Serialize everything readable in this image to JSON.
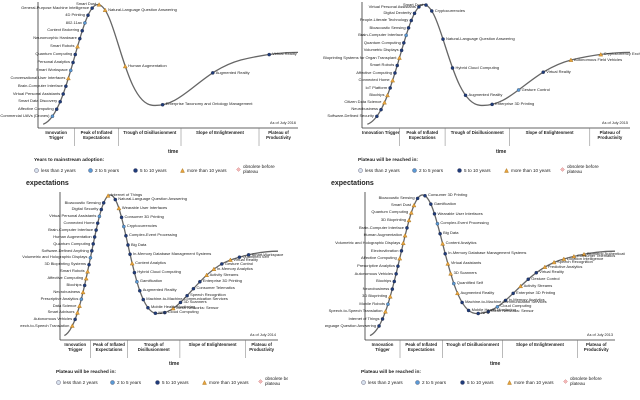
{
  "panels": [
    {
      "id": "tl",
      "title": "",
      "asof": "As of July 2016",
      "time": "time",
      "legend_title": "Years to mainstream adoption:",
      "legend": [
        "less than 2 years",
        "2 to 5 years",
        "5 to 10 years",
        "more than 10 years",
        "obsolete before plateau"
      ],
      "phases": [
        "Innovation Trigger",
        "Peak of Inflated Expectations",
        "Trough of Disillusionment",
        "Slope of Enlightenment",
        "Plateau of Productivity"
      ],
      "left_labels": [
        "Commercial UAVs (Drones)",
        "Affective Computing",
        "Smart Data Discovery",
        "Virtual Personal Assistants",
        "Brain-Computer Interface",
        "Conversational User Interfaces",
        "Smart Workspace",
        "Personal Analytics",
        "Quantum Computing",
        "Smart Robots",
        "Neuromorphic Hardware",
        "Context Brokering",
        "802.11ax",
        "4D Printing",
        "General-Purpose Machine Intelligence",
        "Smart Dust"
      ],
      "right_labels": [
        "Natural-Language Question Answering",
        "Human Augmentation",
        "Enterprise Taxonomy and Ontology Management",
        "Augmented Reality",
        "Virtual Reality"
      ]
    },
    {
      "id": "tr",
      "title": "",
      "asof": "As of July 2015",
      "time": "time",
      "legend_title": "Plateau will be reached in:",
      "legend": [
        "less than 2 years",
        "2 to 5 years",
        "5 to 10 years",
        "more than 10 years",
        "obsolete before plateau"
      ],
      "phases": [
        "Innovation Trigger",
        "Peak of Inflated Expectations",
        "Trough of Disillusionment",
        "Slope of Enlightenment",
        "Plateau of Productivity"
      ],
      "left_labels": [
        "Software-Defined Security",
        "Neurobusiness",
        "Citizen Data Science",
        "Biochips",
        "IoT Platform",
        "Connected Home",
        "Affective Computing",
        "Smart Robots",
        "3D Bioprinting Systems for Organ Transplant",
        "Volumetric Displays",
        "Quantum Computing",
        "Brain-Computer Interface",
        "Bioacoustic Sensing",
        "People-Literate Technology",
        "Digital Dexterity",
        "Virtual Personal Assistants",
        "Smart Dust"
      ],
      "right_labels": [
        "Cryptocurrencies",
        "Natural-Language Question Answering",
        "Hybrid Cloud Computing",
        "Augmented Reality",
        "Enterprise 3D Printing",
        "Gesture Control",
        "Virtual Reality",
        "Autonomous Field Vehicles",
        "Cryptocurrency Exchange"
      ]
    },
    {
      "id": "bl",
      "title": "expectations",
      "asof": "As of July 2014",
      "time": "time",
      "legend_title": "Plateau will be reached in:",
      "legend": [
        "less than 2 years",
        "2 to 5 years",
        "5 to 10 years",
        "more than 10 years",
        "obsolete before plateau"
      ],
      "phases": [
        "Innovation Trigger",
        "Peak of Inflated Expectations",
        "Trough of Disillusionment",
        "Slope of Enlightenment",
        "Plateau of Productivity"
      ],
      "left_labels": [
        "Speech-to-Speech Translation",
        "Autonomous Vehicles",
        "Smart Advisors",
        "Data Science",
        "Prescriptive Analytics",
        "Neurobusiness",
        "Biochips",
        "Affective Computing",
        "Smart Robots",
        "3D Bioprinting Systems",
        "Volumetric and Holographic Displays",
        "Software-Defined Anything",
        "Quantum Computing",
        "Human Augmentation",
        "Brain-Computer Interface",
        "Connected Home",
        "Virtual Personal Assistants",
        "Digital Security",
        "Bioacoustic Sensing"
      ],
      "right_labels": [
        "Internet of Things",
        "Natural-Language Question Answering",
        "Wearable User Interfaces",
        "Consumer 3D Printing",
        "Cryptocurrencies",
        "Complex-Event Processing",
        "Big Data",
        "In-Memory Database Management Systems",
        "Content Analytics",
        "Hybrid Cloud Computing",
        "Gamification",
        "Augmented Reality",
        "Machine-to-Machine Communication Services",
        "Mobile Health Monitoring",
        "NFC",
        "Cloud Computing",
        "Mesh Networks: Sensor",
        "3D Scanners",
        "Speech Recognition",
        "Consumer Telematics",
        "Enterprise 3D Printing",
        "Activity Streams",
        "In-Memory Analytics",
        "Gesture Control",
        "Virtual Reality",
        "Quantified Self",
        "Smart Workspace"
      ]
    },
    {
      "id": "br",
      "title": "expectations",
      "asof": "As of July 2013",
      "time": "time",
      "legend_title": "Plateau will be reached in:",
      "legend": [
        "less than 2 years",
        "2 to 5 years",
        "5 to 10 years",
        "more than 10 years",
        "obsolete before plateau"
      ],
      "phases": [
        "Innovation Trigger",
        "Peak of Inflated Expectations",
        "Trough of Disillusionment",
        "Slope of Enlightenment",
        "Plateau of Productivity"
      ],
      "left_labels": [
        "Natural-Language Question Answering",
        "Internet of Things",
        "Speech-to-Speech Translation",
        "Mobile Robots",
        "3D Bioprinting",
        "Neurobusiness",
        "Biochips",
        "Autonomous Vehicles",
        "Prescriptive Analytics",
        "Affective Computing",
        "Electrovibration",
        "Volumetric and Holographic Displays",
        "Human Augmentation",
        "Brain-Computer Interface",
        "3D Bioprinting",
        "Quantum Computing",
        "Smart Dust",
        "Bioacoustic Sensing"
      ],
      "right_labels": [
        "Consumer 3D Printing",
        "Gamification",
        "Wearable User Interfaces",
        "Complex-Event Processing",
        "Big Data",
        "Content Analytics",
        "In-Memory Database Management Systems",
        "Virtual Assistants",
        "3D Scanners",
        "Quantified Self",
        "Augmented Reality",
        "Machine-to-Machine Communication Services",
        "Mobile Health Monitoring",
        "NFC",
        "Mesh Networks: Sensor",
        "Cloud Computing",
        "In-Memory Analytics",
        "Enterprise 3D Printing",
        "Activity Streams",
        "Gesture Control",
        "Virtual Reality",
        "Predictive Analytics",
        "Speech Recognition",
        "Location Intelligence",
        "Consumer Telematics",
        "Biometric Authentication Methods"
      ]
    }
  ]
}
